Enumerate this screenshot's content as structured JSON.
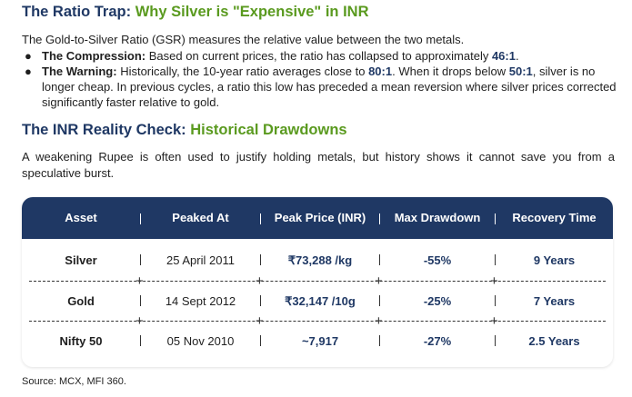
{
  "section1": {
    "title_prefix": "The Ratio Trap: ",
    "title_highlight": "Why Silver is \"Expensive\" in INR",
    "intro": "The Gold-to-Silver Ratio (GSR) measures the relative value between the two metals.",
    "bullets": [
      {
        "label": "The Compression:",
        "text": " Based on current prices, the ratio has collapsed to approximately ",
        "value": "46:1",
        "tail": "."
      },
      {
        "label": "The Warning:",
        "text_a": " Historically, the 10-year ratio averages close to ",
        "value_a": "80:1",
        "text_b": ". When it drops below ",
        "value_b": "50:1",
        "text_c": ", silver is no longer cheap. In previous cycles, a ratio this low has preceded a mean reversion where silver prices corrected significantly faster relative to gold."
      }
    ]
  },
  "section2": {
    "title_prefix": "The INR Reality Check: ",
    "title_highlight": "Historical Drawdowns",
    "paragraph": "A weakening Rupee is often used to justify holding metals, but history shows it cannot save you from a speculative burst."
  },
  "table": {
    "headers": [
      "Asset",
      "Peaked At",
      "Peak Price (INR)",
      "Max Drawdown",
      "Recovery Time"
    ],
    "rows": [
      [
        "Silver",
        "25 April 2011",
        "₹73,288 /kg",
        "-55%",
        "9 Years"
      ],
      [
        "Gold",
        "14 Sept 2012",
        "₹32,147 /10g",
        "-25%",
        "7 Years"
      ],
      [
        "Nifty 50",
        "05 Nov 2010",
        "~7,917",
        "-27%",
        "2.5 Years"
      ]
    ]
  },
  "source": "Source: MCX, MFI 360.",
  "colors": {
    "navy": "#1f3864",
    "green": "#5a9a1f"
  }
}
